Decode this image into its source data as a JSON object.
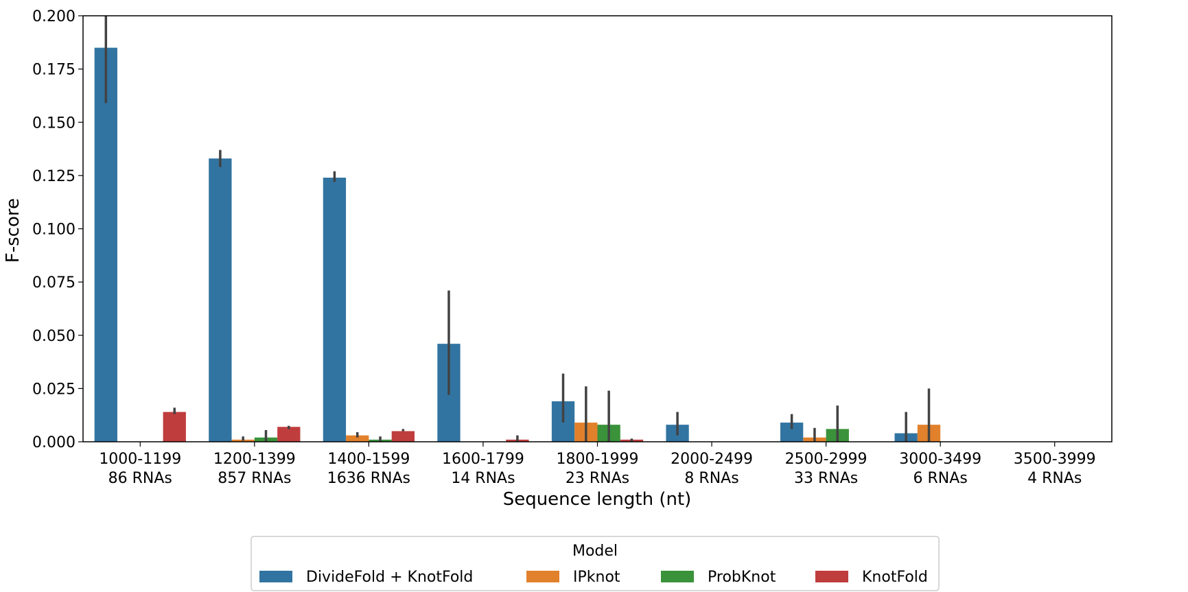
{
  "chart_data": {
    "type": "bar",
    "title": "",
    "xlabel": "Sequence length (nt)",
    "ylabel": "F-score",
    "ylim": [
      0,
      0.2
    ],
    "yticks": [
      "0.000",
      "0.025",
      "0.050",
      "0.075",
      "0.100",
      "0.125",
      "0.150",
      "0.175",
      "0.200"
    ],
    "categories": [
      {
        "range": "1000-1199",
        "count": "86 RNAs"
      },
      {
        "range": "1200-1399",
        "count": "857 RNAs"
      },
      {
        "range": "1400-1599",
        "count": "1636 RNAs"
      },
      {
        "range": "1600-1799",
        "count": "14 RNAs"
      },
      {
        "range": "1800-1999",
        "count": "23 RNAs"
      },
      {
        "range": "2000-2499",
        "count": "8 RNAs"
      },
      {
        "range": "2500-2999",
        "count": "33 RNAs"
      },
      {
        "range": "3000-3499",
        "count": "6 RNAs"
      },
      {
        "range": "3500-3999",
        "count": "4 RNAs"
      }
    ],
    "series": [
      {
        "name": "DivideFold + KnotFold",
        "color": "#3274a1",
        "values": [
          0.185,
          0.133,
          0.124,
          0.046,
          0.019,
          0.008,
          0.009,
          0.004,
          0
        ],
        "err_low": [
          0.159,
          0.129,
          0.122,
          0.022,
          0.009,
          0.003,
          0.006,
          0,
          null
        ],
        "err_high": [
          0.2,
          0.137,
          0.127,
          0.071,
          0.032,
          0.014,
          0.013,
          0.014,
          null
        ]
      },
      {
        "name": "IPknot",
        "color": "#e1812c",
        "values": [
          0,
          0.001,
          0.003,
          0,
          0.009,
          0,
          0.002,
          0.008,
          0
        ],
        "err_low": [
          null,
          0.0005,
          0.002,
          null,
          0,
          null,
          0,
          0,
          null
        ],
        "err_high": [
          null,
          0.0025,
          0.0045,
          null,
          0.026,
          null,
          0.0065,
          0.025,
          null
        ]
      },
      {
        "name": "ProbKnot",
        "color": "#3a923a",
        "values": [
          0,
          0.002,
          0.001,
          0,
          0.008,
          0,
          0.006,
          0,
          0
        ],
        "err_low": [
          null,
          0,
          0,
          null,
          0,
          null,
          0,
          null,
          null
        ],
        "err_high": [
          null,
          0.0055,
          0.0025,
          null,
          0.024,
          null,
          0.017,
          null,
          null
        ]
      },
      {
        "name": "KnotFold",
        "color": "#c03d3e",
        "values": [
          0.014,
          0.007,
          0.005,
          0.001,
          0.001,
          0,
          0,
          0,
          0
        ],
        "err_low": [
          0.013,
          0.006,
          0.005,
          0,
          0,
          null,
          null,
          null,
          null
        ],
        "err_high": [
          0.016,
          0.0075,
          0.006,
          0.003,
          0.0015,
          null,
          null,
          null,
          null
        ]
      }
    ],
    "legend": {
      "title": "Model",
      "position": "bottom-center"
    },
    "grid": false
  }
}
